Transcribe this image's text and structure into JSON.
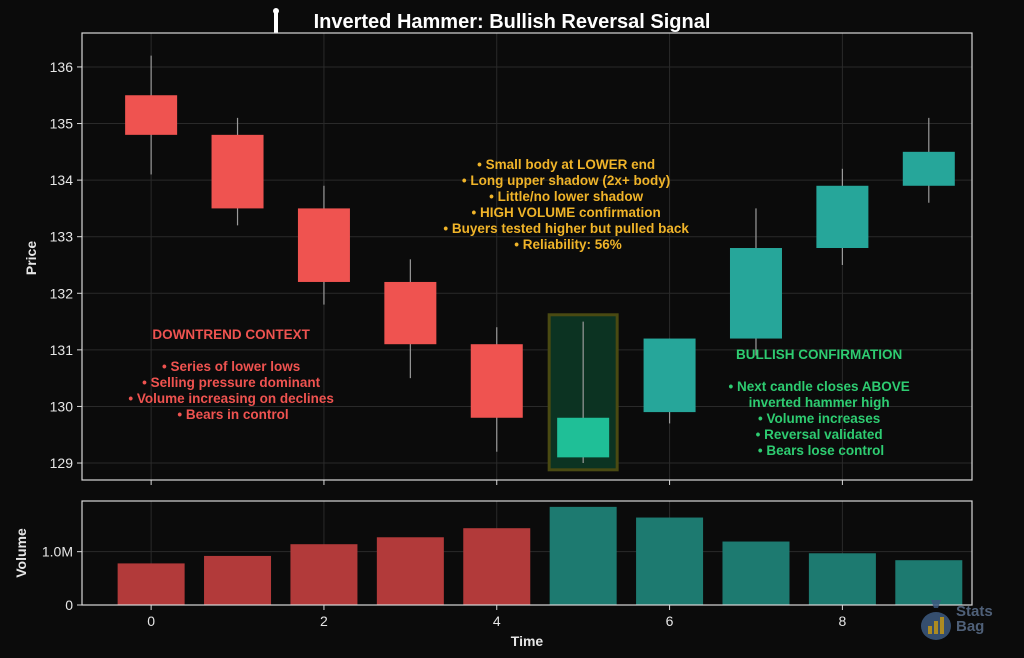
{
  "title": "Inverted Hammer: Bullish Reversal Signal",
  "colors": {
    "background": "#0b0b0b",
    "bear": "#ef5350",
    "bull": "#26a69a",
    "highlight_candle": "#1fbf97",
    "bear_volume": "#b23a3a",
    "bull_volume": "#1d7a70",
    "annotation_center": "#f0b429",
    "annotation_left": "#ef5350",
    "annotation_right": "#2ecc71",
    "axis": "#d9d9d9",
    "grid": "#2a2a2a"
  },
  "annotations": {
    "pattern_notes": [
      "• Small body at LOWER end",
      "• Long upper shadow (2x+ body)",
      "• Little/no lower shadow",
      "• HIGH VOLUME confirmation",
      "• Buyers tested higher but pulled back",
      "• Reliability: 56%"
    ],
    "downtrend_title": "DOWNTREND CONTEXT",
    "downtrend_points": [
      "• Series of lower lows",
      "• Selling pressure dominant",
      "• Volume increasing on declines",
      "• Bears in control"
    ],
    "bullish_title": "BULLISH CONFIRMATION",
    "bullish_points": [
      "• Next candle closes ABOVE",
      "inverted hammer high",
      "• Volume increases",
      "• Reversal validated",
      "• Bears lose control"
    ]
  },
  "watermark": {
    "line1": "Stats",
    "line2": "Bag"
  },
  "chart_data": [
    {
      "type": "candlestick",
      "ylabel": "Price",
      "ylim": [
        128.7,
        136.6
      ],
      "yticks": [
        129,
        130,
        131,
        132,
        133,
        134,
        135,
        136
      ],
      "xlim": [
        -0.8,
        9.5
      ],
      "grid": true,
      "highlight_index": 5,
      "candles": [
        {
          "x": 0,
          "open": 135.5,
          "high": 136.2,
          "low": 134.1,
          "close": 134.8
        },
        {
          "x": 1,
          "open": 134.8,
          "high": 135.1,
          "low": 133.2,
          "close": 133.5
        },
        {
          "x": 2,
          "open": 133.5,
          "high": 133.9,
          "low": 131.8,
          "close": 132.2
        },
        {
          "x": 3,
          "open": 132.2,
          "high": 132.6,
          "low": 130.5,
          "close": 131.1
        },
        {
          "x": 4,
          "open": 131.1,
          "high": 131.4,
          "low": 129.2,
          "close": 129.8
        },
        {
          "x": 5,
          "open": 129.1,
          "high": 131.5,
          "low": 129.0,
          "close": 129.8
        },
        {
          "x": 6,
          "open": 129.9,
          "high": 131.2,
          "low": 129.7,
          "close": 131.2
        },
        {
          "x": 7,
          "open": 131.2,
          "high": 133.5,
          "low": 130.9,
          "close": 132.8
        },
        {
          "x": 8,
          "open": 132.8,
          "high": 134.2,
          "low": 132.5,
          "close": 133.9
        },
        {
          "x": 9,
          "open": 133.9,
          "high": 135.1,
          "low": 133.6,
          "close": 134.5
        }
      ]
    },
    {
      "type": "bar",
      "xlabel": "Time",
      "ylabel": "Volume",
      "ylim": [
        0,
        1950000
      ],
      "ytick_values": [
        0,
        1000000
      ],
      "ytick_labels": [
        "0",
        "1.0M"
      ],
      "xtick_values": [
        0,
        2,
        4,
        6,
        8
      ],
      "xtick_labels": [
        "0",
        "2",
        "4",
        "6",
        "8"
      ],
      "grid": true,
      "values": [
        780000,
        920000,
        1140000,
        1270000,
        1440000,
        1840000,
        1640000,
        1190000,
        970000,
        840000
      ]
    }
  ]
}
